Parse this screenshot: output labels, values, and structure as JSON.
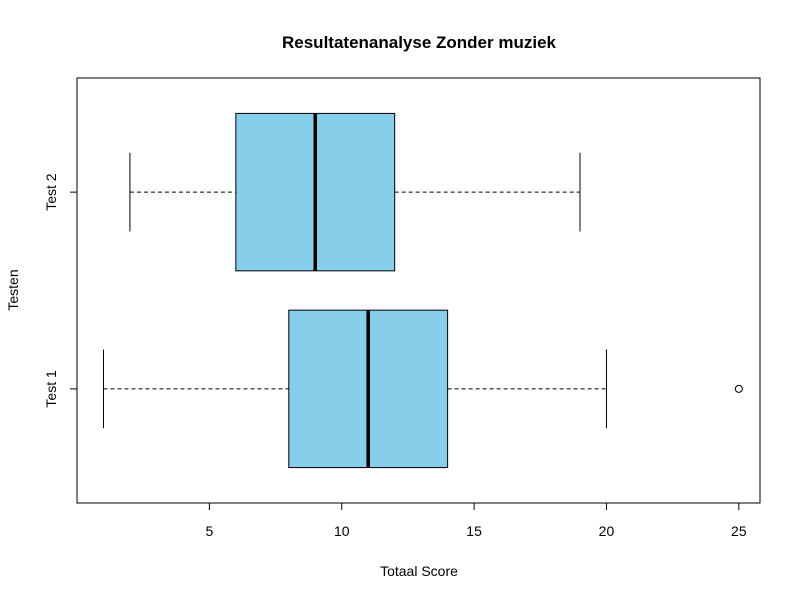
{
  "chart_data": {
    "type": "boxplot",
    "orientation": "horizontal",
    "title": "Resultatenanalyse Zonder muziek",
    "xlabel": "Totaal Score",
    "ylabel": "Testen",
    "xlim": [
      0.0,
      25.8
    ],
    "xticks": [
      5,
      10,
      15,
      20,
      25
    ],
    "box_color": "#87CEEB",
    "categories": [
      "Test 1",
      "Test 2"
    ],
    "boxes": [
      {
        "name": "Test 1",
        "whisker_low": 1,
        "q1": 8,
        "median": 11,
        "q3": 14,
        "whisker_high": 20,
        "outliers": [
          25
        ]
      },
      {
        "name": "Test 2",
        "whisker_low": 2,
        "q1": 6,
        "median": 9,
        "q3": 12,
        "whisker_high": 19,
        "outliers": []
      }
    ],
    "grid": false,
    "legend": "none"
  }
}
